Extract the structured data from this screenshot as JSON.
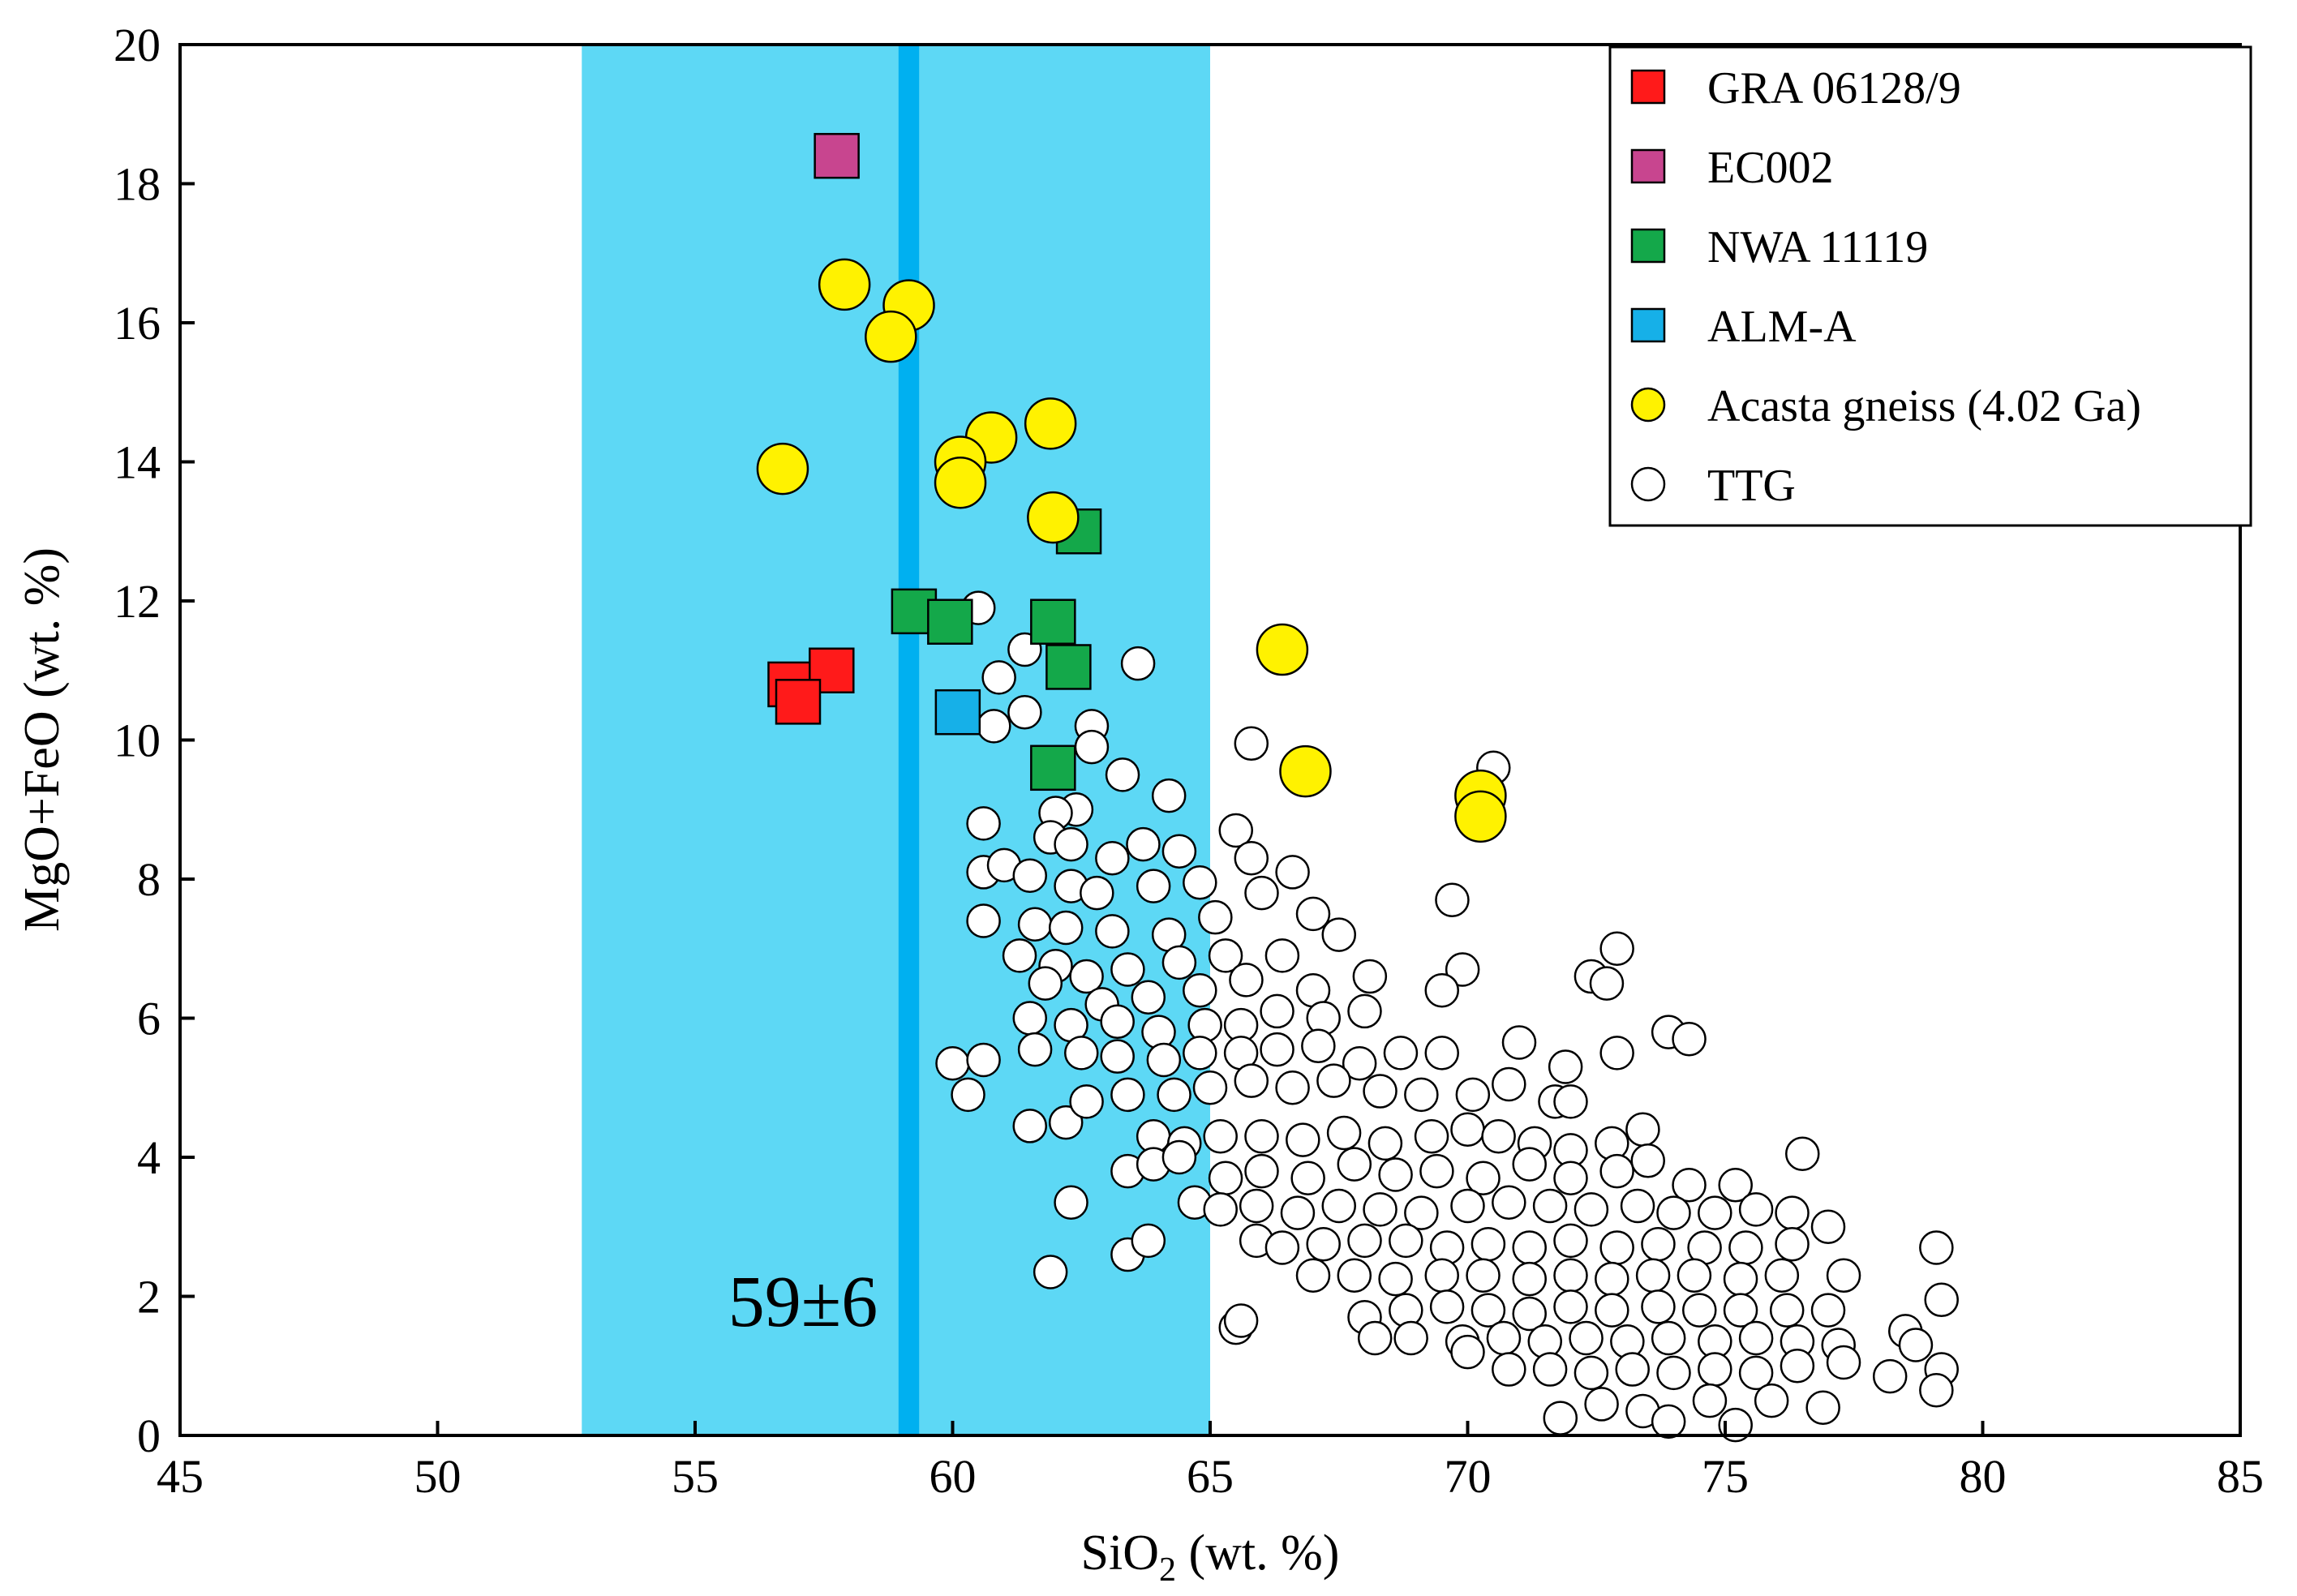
{
  "chart_data": {
    "type": "scatter",
    "xlabel": "SiO",
    "xlabel_subscript": "2",
    "xlabel_suffix": " (wt. %)",
    "ylabel": "MgO+FeO (wt. %)",
    "xlim": [
      45,
      85
    ],
    "ylim": [
      0,
      20
    ],
    "xticks": [
      45,
      50,
      55,
      60,
      65,
      70,
      75,
      80,
      85
    ],
    "yticks": [
      0,
      2,
      4,
      6,
      8,
      10,
      12,
      14,
      16,
      18,
      20
    ],
    "grid": false,
    "legend_position": "top-right",
    "band": {
      "from": 52.8,
      "to": 65.0,
      "color": "#5dd8f5"
    },
    "center_line": {
      "from": 58.95,
      "to": 59.35,
      "color": "#00b0f0"
    },
    "annotation": "59±6",
    "series": [
      {
        "name": "TTG",
        "marker": "circle",
        "color": "#ffffff",
        "points": [
          [
            60.5,
            11.9
          ],
          [
            61.4,
            11.3
          ],
          [
            60.9,
            10.9
          ],
          [
            61.4,
            10.4
          ],
          [
            60.8,
            10.2
          ],
          [
            63.6,
            11.1
          ],
          [
            62.7,
            10.2
          ],
          [
            62.7,
            9.9
          ],
          [
            63.3,
            9.5
          ],
          [
            64.2,
            9.2
          ],
          [
            65.8,
            9.95
          ],
          [
            70.5,
            9.6
          ],
          [
            62.4,
            9.0
          ],
          [
            62.0,
            8.95
          ],
          [
            60.6,
            8.8
          ],
          [
            61.9,
            8.6
          ],
          [
            62.3,
            8.5
          ],
          [
            65.5,
            8.7
          ],
          [
            60.6,
            8.1
          ],
          [
            61.0,
            8.2
          ],
          [
            61.5,
            8.05
          ],
          [
            63.1,
            8.3
          ],
          [
            63.7,
            8.5
          ],
          [
            64.4,
            8.4
          ],
          [
            62.3,
            7.9
          ],
          [
            62.8,
            7.8
          ],
          [
            63.9,
            7.9
          ],
          [
            64.8,
            7.95
          ],
          [
            65.8,
            8.3
          ],
          [
            66.6,
            8.1
          ],
          [
            60.6,
            7.4
          ],
          [
            61.6,
            7.35
          ],
          [
            62.2,
            7.3
          ],
          [
            63.1,
            7.25
          ],
          [
            64.2,
            7.2
          ],
          [
            65.1,
            7.45
          ],
          [
            66.0,
            7.8
          ],
          [
            67.0,
            7.5
          ],
          [
            69.7,
            7.7
          ],
          [
            61.3,
            6.9
          ],
          [
            62.0,
            6.75
          ],
          [
            62.6,
            6.6
          ],
          [
            63.4,
            6.7
          ],
          [
            64.4,
            6.8
          ],
          [
            65.3,
            6.9
          ],
          [
            66.4,
            6.9
          ],
          [
            67.5,
            7.2
          ],
          [
            72.9,
            7.0
          ],
          [
            61.8,
            6.5
          ],
          [
            62.9,
            6.2
          ],
          [
            63.8,
            6.3
          ],
          [
            64.8,
            6.4
          ],
          [
            65.7,
            6.55
          ],
          [
            67.0,
            6.4
          ],
          [
            68.1,
            6.6
          ],
          [
            69.9,
            6.7
          ],
          [
            72.4,
            6.6
          ],
          [
            72.7,
            6.5
          ],
          [
            61.5,
            6.0
          ],
          [
            62.3,
            5.9
          ],
          [
            63.2,
            5.95
          ],
          [
            64.0,
            5.8
          ],
          [
            64.9,
            5.9
          ],
          [
            65.6,
            5.9
          ],
          [
            66.3,
            6.1
          ],
          [
            67.2,
            6.0
          ],
          [
            68.0,
            6.1
          ],
          [
            69.5,
            6.4
          ],
          [
            60.0,
            5.35
          ],
          [
            60.6,
            5.4
          ],
          [
            61.6,
            5.55
          ],
          [
            62.5,
            5.5
          ],
          [
            63.2,
            5.45
          ],
          [
            64.1,
            5.4
          ],
          [
            64.8,
            5.5
          ],
          [
            65.6,
            5.5
          ],
          [
            66.3,
            5.55
          ],
          [
            67.1,
            5.6
          ],
          [
            67.9,
            5.35
          ],
          [
            68.7,
            5.5
          ],
          [
            69.5,
            5.5
          ],
          [
            71.0,
            5.65
          ],
          [
            71.9,
            5.3
          ],
          [
            72.9,
            5.5
          ],
          [
            73.9,
            5.8
          ],
          [
            74.3,
            5.7
          ],
          [
            60.3,
            4.9
          ],
          [
            61.5,
            4.45
          ],
          [
            62.2,
            4.5
          ],
          [
            62.6,
            4.8
          ],
          [
            63.4,
            4.9
          ],
          [
            64.3,
            4.9
          ],
          [
            65.0,
            5.0
          ],
          [
            65.8,
            5.1
          ],
          [
            66.6,
            5.0
          ],
          [
            67.4,
            5.1
          ],
          [
            68.3,
            4.95
          ],
          [
            69.1,
            4.9
          ],
          [
            70.1,
            4.9
          ],
          [
            70.8,
            5.05
          ],
          [
            71.7,
            4.8
          ],
          [
            72.0,
            4.8
          ],
          [
            63.9,
            4.3
          ],
          [
            64.5,
            4.2
          ],
          [
            65.2,
            4.3
          ],
          [
            66.0,
            4.3
          ],
          [
            66.8,
            4.25
          ],
          [
            67.6,
            4.35
          ],
          [
            68.4,
            4.2
          ],
          [
            69.3,
            4.3
          ],
          [
            70.0,
            4.4
          ],
          [
            70.6,
            4.3
          ],
          [
            71.3,
            4.2
          ],
          [
            72.0,
            4.1
          ],
          [
            72.8,
            4.2
          ],
          [
            73.4,
            4.4
          ],
          [
            63.4,
            3.8
          ],
          [
            63.9,
            3.9
          ],
          [
            64.4,
            4.0
          ],
          [
            65.3,
            3.7
          ],
          [
            66.0,
            3.8
          ],
          [
            66.9,
            3.7
          ],
          [
            67.8,
            3.9
          ],
          [
            68.6,
            3.75
          ],
          [
            69.4,
            3.8
          ],
          [
            70.3,
            3.7
          ],
          [
            71.2,
            3.9
          ],
          [
            72.0,
            3.7
          ],
          [
            72.9,
            3.8
          ],
          [
            73.5,
            3.95
          ],
          [
            74.3,
            3.6
          ],
          [
            75.2,
            3.6
          ],
          [
            76.5,
            4.05
          ],
          [
            62.3,
            3.35
          ],
          [
            64.7,
            3.35
          ],
          [
            65.2,
            3.25
          ],
          [
            65.9,
            3.3
          ],
          [
            66.7,
            3.2
          ],
          [
            67.5,
            3.3
          ],
          [
            68.3,
            3.25
          ],
          [
            69.1,
            3.2
          ],
          [
            70.0,
            3.3
          ],
          [
            70.8,
            3.35
          ],
          [
            71.6,
            3.3
          ],
          [
            72.4,
            3.25
          ],
          [
            73.3,
            3.3
          ],
          [
            74.0,
            3.2
          ],
          [
            74.8,
            3.2
          ],
          [
            75.6,
            3.25
          ],
          [
            76.3,
            3.2
          ],
          [
            63.4,
            2.6
          ],
          [
            63.8,
            2.8
          ],
          [
            65.9,
            2.8
          ],
          [
            66.4,
            2.7
          ],
          [
            67.2,
            2.75
          ],
          [
            68.0,
            2.8
          ],
          [
            68.8,
            2.8
          ],
          [
            69.6,
            2.7
          ],
          [
            70.4,
            2.75
          ],
          [
            71.2,
            2.7
          ],
          [
            72.0,
            2.8
          ],
          [
            72.9,
            2.7
          ],
          [
            73.7,
            2.75
          ],
          [
            74.6,
            2.7
          ],
          [
            75.4,
            2.7
          ],
          [
            76.3,
            2.75
          ],
          [
            77.0,
            3.0
          ],
          [
            61.9,
            2.35
          ],
          [
            67.0,
            2.3
          ],
          [
            67.8,
            2.3
          ],
          [
            68.6,
            2.25
          ],
          [
            69.5,
            2.3
          ],
          [
            70.3,
            2.3
          ],
          [
            71.2,
            2.25
          ],
          [
            72.0,
            2.3
          ],
          [
            72.8,
            2.25
          ],
          [
            73.6,
            2.3
          ],
          [
            74.4,
            2.3
          ],
          [
            75.3,
            2.25
          ],
          [
            76.1,
            2.3
          ],
          [
            77.3,
            2.3
          ],
          [
            79.1,
            2.7
          ],
          [
            68.0,
            1.7
          ],
          [
            68.8,
            1.8
          ],
          [
            69.6,
            1.85
          ],
          [
            70.4,
            1.8
          ],
          [
            71.2,
            1.75
          ],
          [
            72.0,
            1.85
          ],
          [
            72.8,
            1.8
          ],
          [
            73.7,
            1.85
          ],
          [
            74.5,
            1.8
          ],
          [
            75.3,
            1.8
          ],
          [
            76.2,
            1.8
          ],
          [
            77.0,
            1.8
          ],
          [
            79.2,
            1.95
          ],
          [
            65.5,
            1.55
          ],
          [
            65.6,
            1.65
          ],
          [
            68.2,
            1.4
          ],
          [
            68.9,
            1.4
          ],
          [
            69.9,
            1.35
          ],
          [
            70.7,
            1.4
          ],
          [
            71.5,
            1.35
          ],
          [
            72.3,
            1.4
          ],
          [
            73.1,
            1.35
          ],
          [
            73.9,
            1.4
          ],
          [
            74.8,
            1.35
          ],
          [
            75.6,
            1.4
          ],
          [
            76.4,
            1.35
          ],
          [
            77.2,
            1.3
          ],
          [
            78.5,
            1.5
          ],
          [
            78.7,
            1.3
          ],
          [
            70.0,
            1.2
          ],
          [
            70.8,
            0.95
          ],
          [
            71.6,
            0.95
          ],
          [
            72.4,
            0.9
          ],
          [
            73.2,
            0.95
          ],
          [
            74.0,
            0.9
          ],
          [
            74.8,
            0.95
          ],
          [
            75.6,
            0.9
          ],
          [
            76.4,
            1.0
          ],
          [
            77.3,
            1.05
          ],
          [
            78.2,
            0.85
          ],
          [
            79.2,
            0.95
          ],
          [
            79.1,
            0.65
          ],
          [
            71.8,
            0.25
          ],
          [
            72.6,
            0.45
          ],
          [
            73.4,
            0.35
          ],
          [
            73.9,
            0.2
          ],
          [
            74.7,
            0.5
          ],
          [
            75.2,
            0.15
          ],
          [
            75.9,
            0.5
          ],
          [
            76.9,
            0.4
          ]
        ]
      },
      {
        "name": "GRA 06128/9",
        "marker": "square",
        "color": "#ff1a1a",
        "points": [
          [
            56.85,
            10.8
          ],
          [
            57.65,
            11.0
          ],
          [
            57.0,
            10.55
          ]
        ]
      },
      {
        "name": "EC002",
        "marker": "square",
        "color": "#c8458f",
        "points": [
          [
            57.75,
            18.4
          ]
        ]
      },
      {
        "name": "NWA 11119",
        "marker": "square",
        "color": "#14a84a",
        "points": [
          [
            59.25,
            11.85
          ],
          [
            59.95,
            11.7
          ],
          [
            61.95,
            11.7
          ],
          [
            62.25,
            11.05
          ],
          [
            61.95,
            9.6
          ],
          [
            62.45,
            13.0
          ]
        ]
      },
      {
        "name": "ALM-A",
        "marker": "square",
        "color": "#16b0e8",
        "points": [
          [
            60.1,
            10.4
          ]
        ]
      },
      {
        "name": "Acasta gneiss (4.02 Ga)",
        "marker": "circle",
        "color": "#fff200",
        "points": [
          [
            57.9,
            16.55
          ],
          [
            59.15,
            16.25
          ],
          [
            58.8,
            15.8
          ],
          [
            60.75,
            14.35
          ],
          [
            56.7,
            13.9
          ],
          [
            60.15,
            14.0
          ],
          [
            60.15,
            13.7
          ],
          [
            61.9,
            14.55
          ],
          [
            61.95,
            13.2
          ],
          [
            66.4,
            11.3
          ],
          [
            66.85,
            9.55
          ],
          [
            70.25,
            9.2
          ],
          [
            70.25,
            8.9
          ]
        ]
      }
    ],
    "legend": [
      {
        "label": "GRA 06128/9",
        "marker": "square",
        "color": "#ff1a1a"
      },
      {
        "label": "EC002",
        "marker": "square",
        "color": "#c8458f"
      },
      {
        "label": "NWA 11119",
        "marker": "square",
        "color": "#14a84a"
      },
      {
        "label": "ALM-A",
        "marker": "square",
        "color": "#16b0e8"
      },
      {
        "label": "Acasta gneiss (4.02 Ga)",
        "marker": "circle",
        "color": "#fff200"
      },
      {
        "label": "TTG",
        "marker": "circle",
        "color": "#ffffff"
      }
    ]
  }
}
